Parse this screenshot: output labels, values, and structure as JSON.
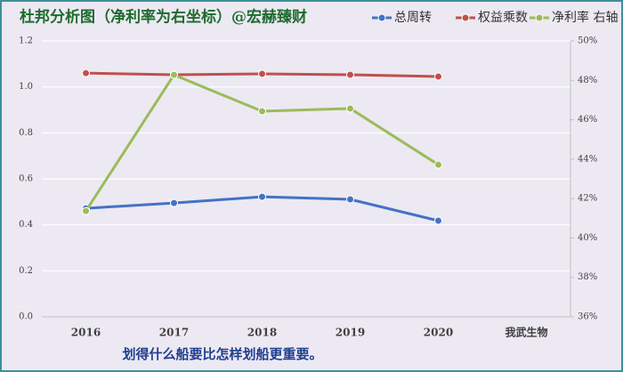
{
  "chart_data": {
    "type": "line",
    "title": "杜邦分析图（净利率为右坐标）@宏赫臻财",
    "footer": "划得什么船要比怎样划船更重要。",
    "categories": [
      "2016",
      "2017",
      "2018",
      "2019",
      "2020",
      "我武生物"
    ],
    "series": [
      {
        "name": "总周转",
        "color": "#4472c4",
        "values": [
          0.472,
          0.495,
          0.522,
          0.511,
          0.418,
          null
        ]
      },
      {
        "name": "权益乘数",
        "color": "#c0504d",
        "values": [
          1.06,
          1.053,
          1.057,
          1.053,
          1.045,
          null
        ]
      },
      {
        "name": "净利率 右轴",
        "color": "#9bbb59",
        "axis": "y2",
        "values": [
          41.37,
          48.28,
          46.43,
          46.57,
          43.72,
          null
        ]
      }
    ],
    "ylim": [
      0,
      1.2
    ],
    "yticks": [
      {
        "value": 0,
        "label": "0.0"
      },
      0.2,
      0.4,
      0.6,
      0.8,
      {
        "value": 1,
        "label": "1.0"
      },
      1.2
    ],
    "y2lim": [
      36,
      50
    ],
    "y2ticks": [
      {
        "value": 36,
        "label": "36%"
      },
      {
        "value": 38,
        "label": "38%"
      },
      {
        "value": 40,
        "label": "40%"
      },
      {
        "value": 42,
        "label": "42%"
      },
      {
        "value": 44,
        "label": "44%"
      },
      {
        "value": 46,
        "label": "46%"
      },
      {
        "value": 48,
        "label": "48%"
      },
      {
        "value": 50,
        "label": "50%"
      }
    ],
    "grid": true
  }
}
